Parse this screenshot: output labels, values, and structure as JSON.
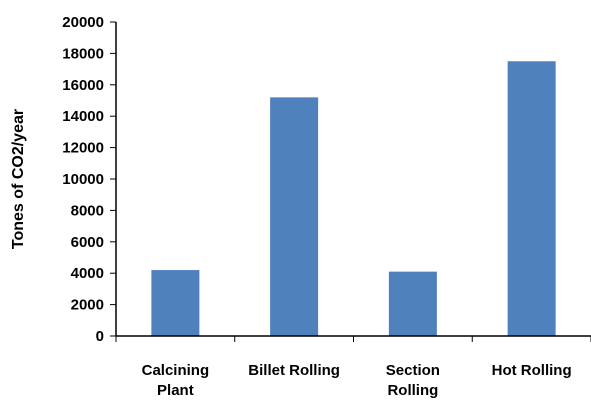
{
  "chart_data": {
    "type": "bar",
    "title": "",
    "xlabel": "",
    "ylabel": "Tones of CO2/year",
    "categories": [
      [
        "Calcining",
        "Plant"
      ],
      [
        "Billet Rolling"
      ],
      [
        "Section",
        "Rolling"
      ],
      [
        "Hot Rolling"
      ]
    ],
    "values": [
      4200,
      15200,
      4100,
      17500
    ],
    "ylim": [
      0,
      20000
    ],
    "yticks": [
      0,
      2000,
      4000,
      6000,
      8000,
      10000,
      12000,
      14000,
      16000,
      18000,
      20000
    ],
    "grid": false,
    "legend": "none",
    "bar_color": "#4f81bd",
    "axis_color": "#000000"
  }
}
